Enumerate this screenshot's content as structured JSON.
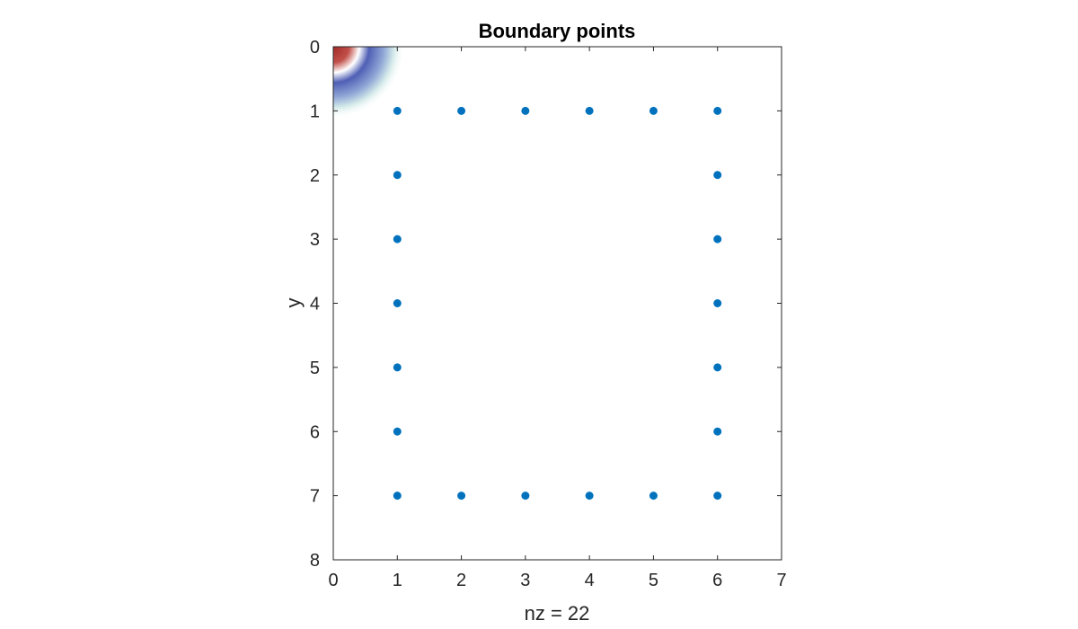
{
  "chart_data": {
    "type": "scatter",
    "title": "Boundary points",
    "xlabel": "nz = 22",
    "ylabel": "y",
    "xlim": [
      0,
      7
    ],
    "ylim": [
      0,
      8
    ],
    "y_reversed": true,
    "x_ticks": [
      0,
      1,
      2,
      3,
      4,
      5,
      6,
      7
    ],
    "y_ticks": [
      0,
      1,
      2,
      3,
      4,
      5,
      6,
      7,
      8
    ],
    "x_tick_labels": [
      "0",
      "1",
      "2",
      "3",
      "4",
      "5",
      "6",
      "7"
    ],
    "y_tick_labels": [
      "0",
      "1",
      "2",
      "3",
      "4",
      "5",
      "6",
      "7",
      "8"
    ],
    "grid": false,
    "marker_color": "#0072BD",
    "points": [
      {
        "x": 1,
        "y": 1
      },
      {
        "x": 2,
        "y": 1
      },
      {
        "x": 3,
        "y": 1
      },
      {
        "x": 4,
        "y": 1
      },
      {
        "x": 5,
        "y": 1
      },
      {
        "x": 6,
        "y": 1
      },
      {
        "x": 1,
        "y": 2
      },
      {
        "x": 6,
        "y": 2
      },
      {
        "x": 1,
        "y": 3
      },
      {
        "x": 6,
        "y": 3
      },
      {
        "x": 1,
        "y": 4
      },
      {
        "x": 6,
        "y": 4
      },
      {
        "x": 1,
        "y": 5
      },
      {
        "x": 6,
        "y": 5
      },
      {
        "x": 1,
        "y": 6
      },
      {
        "x": 6,
        "y": 6
      },
      {
        "x": 1,
        "y": 7
      },
      {
        "x": 2,
        "y": 7
      },
      {
        "x": 3,
        "y": 7
      },
      {
        "x": 4,
        "y": 7
      },
      {
        "x": 5,
        "y": 7
      },
      {
        "x": 6,
        "y": 7
      }
    ],
    "corner_overlay": {
      "description": "radial color blob at origin",
      "colors": [
        "#a32a25",
        "#ffffff",
        "#4f5fb5",
        "#cfe8e6"
      ]
    }
  }
}
